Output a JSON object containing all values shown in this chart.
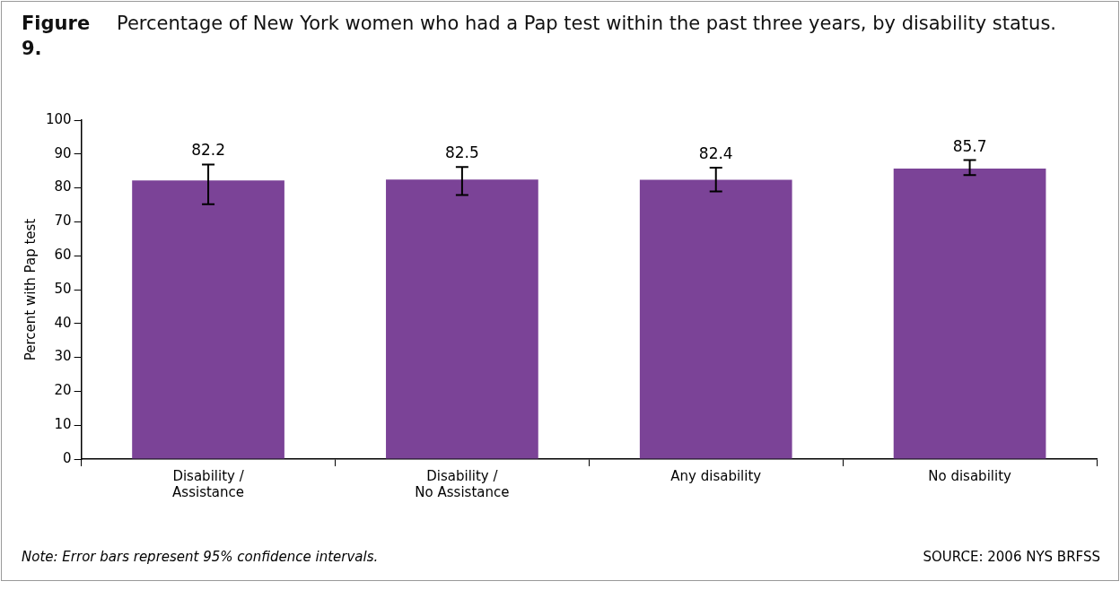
{
  "chart_data": {
    "type": "bar",
    "title": "Figure 9. Percentage of New York women who had a Pap test within the past three years, by disability status.",
    "ylabel": "Percent with Pap test",
    "categories": [
      "Disability / Assistance",
      "Disability / No Assistance",
      "Any disability",
      "No disability"
    ],
    "values": [
      82.2,
      82.5,
      82.4,
      85.7
    ],
    "color": "#7b4397",
    "errors": [
      [
        75.2,
        86.9
      ],
      [
        77.9,
        86.2
      ],
      [
        79.0,
        86.0
      ],
      [
        83.8,
        88.2
      ]
    ],
    "ylim": [
      0,
      100
    ],
    "yticks": [
      0,
      10,
      20,
      30,
      40,
      50,
      60,
      70,
      80,
      90,
      100
    ],
    "grid": false,
    "legend": false,
    "data_labels": true,
    "annotations": [
      "Note: Error bars represent 95% confidence intervals.",
      "SOURCE: 2006 NYS BRFSS"
    ]
  }
}
